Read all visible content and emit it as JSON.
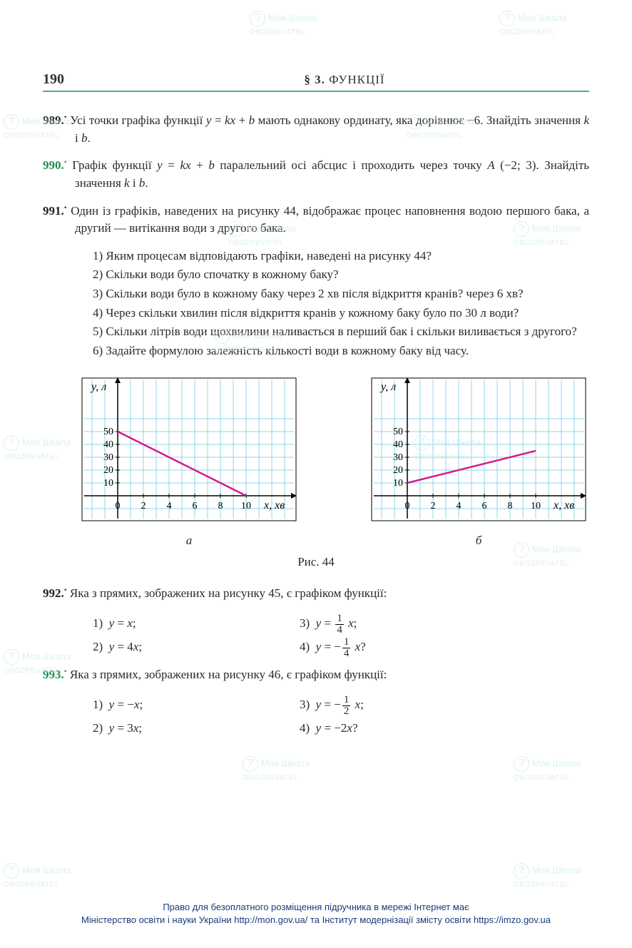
{
  "header": {
    "page": "190",
    "section_bold": "§ 3.",
    "section_rest": " ФУНКЦІЇ"
  },
  "p989": {
    "num": "989.",
    "text": "Усі точки графіка функції y = kx + b мають однакову ординату, яка дорівнює −6. Знайдіть значення k і b."
  },
  "p990": {
    "num": "990.",
    "text": "Графік функції y = kx + b паралельний осі абсцис і проходить через точку A (−2; 3). Знайдіть значення k і b."
  },
  "p991": {
    "num": "991.",
    "intro": "Один із графіків, наведених на рисунку 44, відображає процес наповнення водою першого бака, а другий — витікання води з другого бака.",
    "q1": "Яким процесам відповідають графіки, наведені на рисунку 44?",
    "q2": "Скільки води було спочатку в кожному баку?",
    "q3": "Скільки води було в кожному баку через 2 хв після відкриття кранів? через 6 хв?",
    "q4": "Через скільки хвилин після відкриття кранів у кожному баку було по 30 л води?",
    "q5": "Скільки літрів води щохвилини наливається в перший бак і скільки виливається з другого?",
    "q6": "Задайте формулою залежність кількості води в кожному баку від часу."
  },
  "charts": {
    "a": {
      "type": "line",
      "ylabel": "y, л",
      "xlabel": "x, хв",
      "yticks": [
        10,
        20,
        30,
        40,
        50
      ],
      "xticks": [
        0,
        2,
        4,
        6,
        8,
        10
      ],
      "xlim": [
        -2,
        13
      ],
      "ylim": [
        -8,
        58
      ],
      "line": [
        [
          0,
          50
        ],
        [
          10,
          0
        ]
      ],
      "line_color": "#d81b8c",
      "line_width": 2.5,
      "grid_color": "#8fd4e8",
      "axis_color": "#000000",
      "bg_color": "#ffffff",
      "cell": 18,
      "caption": "а"
    },
    "b": {
      "type": "line",
      "ylabel": "y, л",
      "xlabel": "x, хв",
      "yticks": [
        10,
        20,
        30,
        40,
        50
      ],
      "xticks": [
        0,
        2,
        4,
        6,
        8,
        10
      ],
      "xlim": [
        -2,
        13
      ],
      "ylim": [
        -8,
        58
      ],
      "line": [
        [
          0,
          10
        ],
        [
          10,
          35
        ]
      ],
      "line_color": "#d81b8c",
      "line_width": 2.5,
      "grid_color": "#8fd4e8",
      "axis_color": "#000000",
      "bg_color": "#ffffff",
      "cell": 18,
      "caption": "б"
    },
    "fig_label": "Рис. 44"
  },
  "p992": {
    "num": "992.",
    "text": "Яка з прямих, зображених на рисунку 45, є графіком функції:",
    "e1": "1)  y = x;",
    "e3_pre": "3)  y = ",
    "e3_num": "1",
    "e3_den": "4",
    "e3_post": " x;",
    "e2": "2)  y = 4x;",
    "e4_pre": "4)  y = −",
    "e4_num": "1",
    "e4_den": "4",
    "e4_post": " x?"
  },
  "p993": {
    "num": "993.",
    "text": "Яка з прямих, зображених на рисунку 46, є графіком функції:",
    "e1": "1)  y = −x;",
    "e3_pre": "3)  y = −",
    "e3_num": "1",
    "e3_den": "2",
    "e3_post": " x;",
    "e2": "2)  y = 3x;",
    "e4": "4)  y = −2x?"
  },
  "footer": {
    "l1": "Право для безоплатного розміщення підручника в мережі Інтернет має",
    "l2": "Міністерство освіти і науки України http://mon.gov.ua/ та Інститут модернізації змісту освіти https://imzo.gov.ua"
  },
  "watermark": {
    "l1": "Моя Школа",
    "l2": "OBOZREVATEL"
  }
}
